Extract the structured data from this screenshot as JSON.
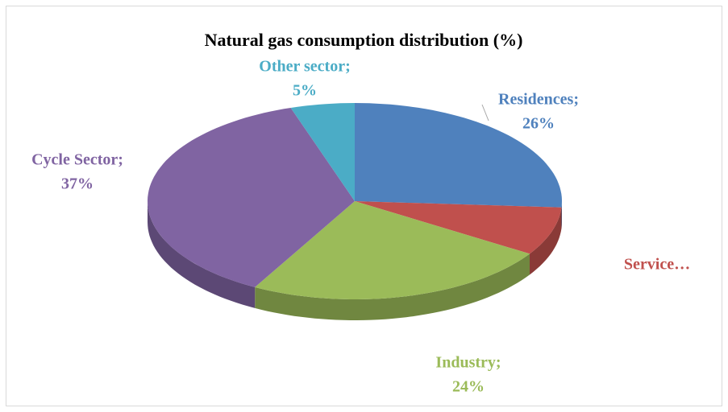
{
  "chart_data": {
    "type": "pie3d",
    "title": "Natural gas consumption distribution (%)",
    "categories": [
      "Residences;",
      "Service…",
      "Industry;",
      "Cycle Sector;",
      "Other sector;"
    ],
    "values": [
      26,
      8,
      24,
      37,
      5
    ],
    "value_labels": [
      "26%",
      null,
      "24%",
      "37%",
      "5%"
    ],
    "colors": [
      "#4f81bd",
      "#c0504d",
      "#9bbb59",
      "#8064a2",
      "#4bacc6"
    ]
  }
}
